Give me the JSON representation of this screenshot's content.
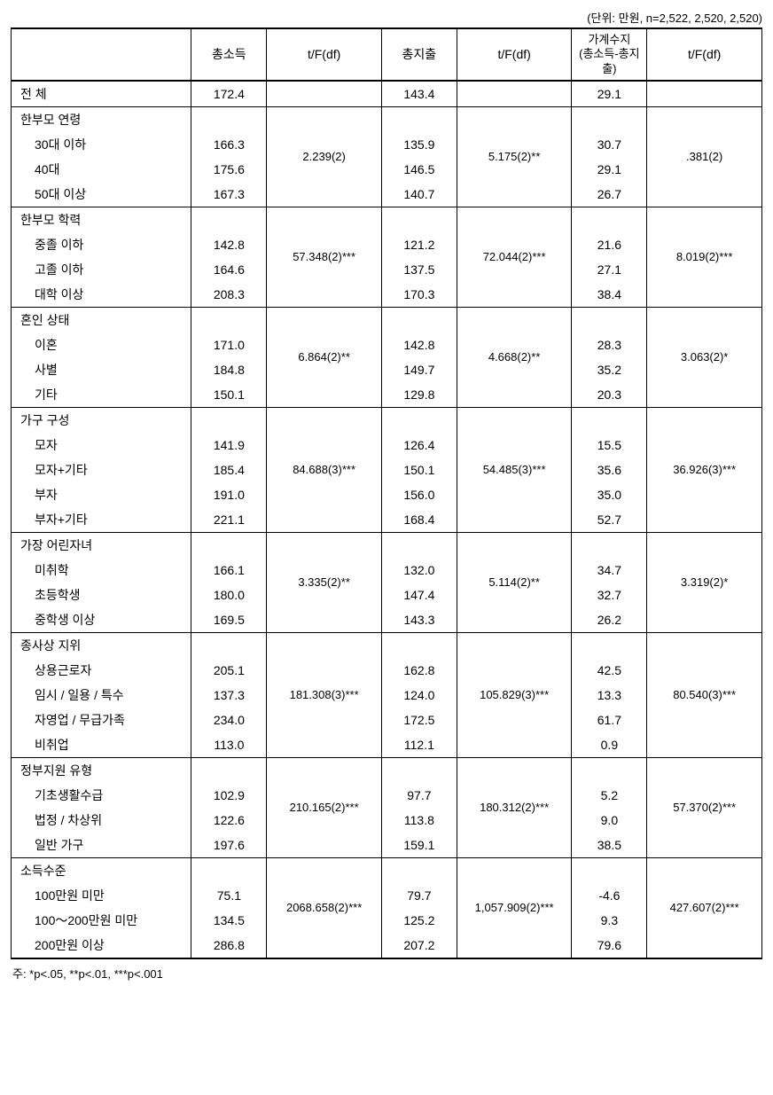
{
  "unit_note": "(단위: 만원, n=2,522, 2,520, 2,520)",
  "headers": {
    "blank": "",
    "c1": "총소득",
    "tf1": "t/F(df)",
    "c2": "총지출",
    "tf2": "t/F(df)",
    "c3a": "가계수지",
    "c3b": "(총소득-총지출)",
    "tf3": "t/F(df)"
  },
  "groups": [
    {
      "title": "전 체",
      "title_only_row": false,
      "rows": [
        {
          "label": "전 체",
          "indent": false,
          "v1": "172.4",
          "v2": "143.4",
          "v3": "29.1"
        }
      ],
      "tf1": "",
      "tf2": "",
      "tf3": ""
    },
    {
      "title": "한부모 연령",
      "rows": [
        {
          "label": "30대 이하",
          "indent": true,
          "v1": "166.3",
          "v2": "135.9",
          "v3": "30.7"
        },
        {
          "label": "40대",
          "indent": true,
          "v1": "175.6",
          "v2": "146.5",
          "v3": "29.1"
        },
        {
          "label": "50대 이상",
          "indent": true,
          "v1": "167.3",
          "v2": "140.7",
          "v3": "26.7"
        }
      ],
      "tf1": "2.239(2)",
      "tf2": "5.175(2)**",
      "tf3": ".381(2)"
    },
    {
      "title": "한부모 학력",
      "rows": [
        {
          "label": "중졸 이하",
          "indent": true,
          "v1": "142.8",
          "v2": "121.2",
          "v3": "21.6"
        },
        {
          "label": "고졸 이하",
          "indent": true,
          "v1": "164.6",
          "v2": "137.5",
          "v3": "27.1"
        },
        {
          "label": "대학 이상",
          "indent": true,
          "v1": "208.3",
          "v2": "170.3",
          "v3": "38.4"
        }
      ],
      "tf1": "57.348(2)***",
      "tf2": "72.044(2)***",
      "tf3": "8.019(2)***"
    },
    {
      "title": "혼인 상태",
      "rows": [
        {
          "label": "이혼",
          "indent": true,
          "v1": "171.0",
          "v2": "142.8",
          "v3": "28.3"
        },
        {
          "label": "사별",
          "indent": true,
          "v1": "184.8",
          "v2": "149.7",
          "v3": "35.2"
        },
        {
          "label": "기타",
          "indent": true,
          "v1": "150.1",
          "v2": "129.8",
          "v3": "20.3"
        }
      ],
      "tf1": "6.864(2)**",
      "tf2": "4.668(2)**",
      "tf3": "3.063(2)*"
    },
    {
      "title": "가구 구성",
      "rows": [
        {
          "label": "모자",
          "indent": true,
          "v1": "141.9",
          "v2": "126.4",
          "v3": "15.5"
        },
        {
          "label": "모자+기타",
          "indent": true,
          "v1": "185.4",
          "v2": "150.1",
          "v3": "35.6"
        },
        {
          "label": "부자",
          "indent": true,
          "v1": "191.0",
          "v2": "156.0",
          "v3": "35.0"
        },
        {
          "label": "부자+기타",
          "indent": true,
          "v1": "221.1",
          "v2": "168.4",
          "v3": "52.7"
        }
      ],
      "tf1": "84.688(3)***",
      "tf2": "54.485(3)***",
      "tf3": "36.926(3)***"
    },
    {
      "title": "가장 어린자녀",
      "rows": [
        {
          "label": "미취학",
          "indent": true,
          "v1": "166.1",
          "v2": "132.0",
          "v3": "34.7"
        },
        {
          "label": "초등학생",
          "indent": true,
          "v1": "180.0",
          "v2": "147.4",
          "v3": "32.7"
        },
        {
          "label": "중학생 이상",
          "indent": true,
          "v1": "169.5",
          "v2": "143.3",
          "v3": "26.2"
        }
      ],
      "tf1": "3.335(2)**",
      "tf2": "5.114(2)**",
      "tf3": "3.319(2)*"
    },
    {
      "title": "종사상 지위",
      "rows": [
        {
          "label": "상용근로자",
          "indent": true,
          "v1": "205.1",
          "v2": "162.8",
          "v3": "42.5"
        },
        {
          "label": "임시 / 일용 / 특수",
          "indent": true,
          "v1": "137.3",
          "v2": "124.0",
          "v3": "13.3"
        },
        {
          "label": "자영업 / 무급가족",
          "indent": true,
          "v1": "234.0",
          "v2": "172.5",
          "v3": "61.7"
        },
        {
          "label": "비취업",
          "indent": true,
          "v1": "113.0",
          "v2": "112.1",
          "v3": "0.9"
        }
      ],
      "tf1": "181.308(3)***",
      "tf2": "105.829(3)***",
      "tf3": "80.540(3)***"
    },
    {
      "title": "정부지원 유형",
      "rows": [
        {
          "label": "기초생활수급",
          "indent": true,
          "v1": "102.9",
          "v2": "97.7",
          "v3": "5.2"
        },
        {
          "label": "법정 / 차상위",
          "indent": true,
          "v1": "122.6",
          "v2": "113.8",
          "v3": "9.0"
        },
        {
          "label": "일반 가구",
          "indent": true,
          "v1": "197.6",
          "v2": "159.1",
          "v3": "38.5"
        }
      ],
      "tf1": "210.165(2)***",
      "tf2": "180.312(2)***",
      "tf3": "57.370(2)***"
    },
    {
      "title": "소득수준",
      "rows": [
        {
          "label": "100만원 미만",
          "indent": true,
          "v1": "75.1",
          "v2": "79.7",
          "v3": "-4.6"
        },
        {
          "label": "100～200만원 미만",
          "indent": true,
          "v1": "134.5",
          "v2": "125.2",
          "v3": "9.3"
        },
        {
          "label": "200만원 이상",
          "indent": true,
          "v1": "286.8",
          "v2": "207.2",
          "v3": "79.6"
        }
      ],
      "tf1": "2068.658(2)***",
      "tf2": "1,057.909(2)***",
      "tf3": "427.607(2)***"
    }
  ],
  "footnote": "주: *p<.05, **p<.01, ***p<.001"
}
